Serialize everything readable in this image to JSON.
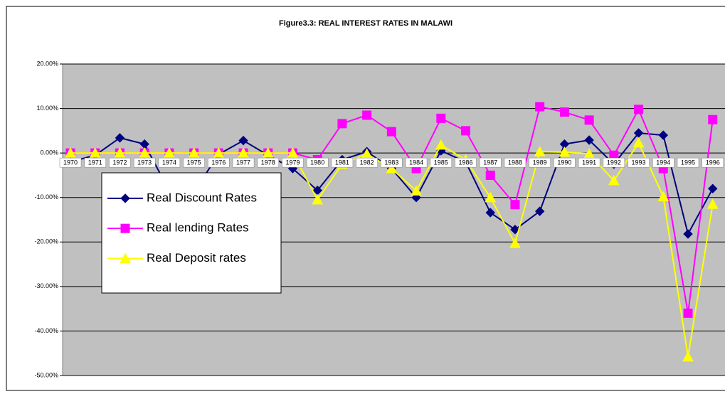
{
  "chart_data": {
    "type": "line",
    "title": "Figure3.3: REAL INTEREST RATES IN MALAWI",
    "categories": [
      "1970",
      "1971",
      "1972",
      "1973",
      "1974",
      "1975",
      "1976",
      "1977",
      "1978",
      "1979",
      "1980",
      "1981",
      "1982",
      "1983",
      "1984",
      "1985",
      "1986",
      "1987",
      "1988",
      "1989",
      "1990",
      "1991",
      "1992",
      "1993",
      "1994",
      "1995",
      "1996"
    ],
    "series": [
      {
        "name": "Real Discount Rates",
        "color": "#000080",
        "marker": "diamond",
        "values": [
          -2,
          -0.5,
          3.4,
          2.0,
          -8.5,
          -8.7,
          -0.3,
          2.8,
          -0.5,
          -3.5,
          -8.4,
          -1.5,
          0.3,
          -3.5,
          -10,
          0.5,
          -2,
          -13.4,
          -17.2,
          -13.1,
          2.0,
          2.9,
          -2.5,
          4.5,
          4.0,
          -18.2,
          -8
        ]
      },
      {
        "name": "Real lending Rates",
        "color": "#ff00ff",
        "marker": "square",
        "values": [
          0,
          0,
          0,
          0,
          0,
          0,
          0,
          0,
          0,
          0,
          -1.5,
          6.6,
          8.5,
          4.8,
          -3.5,
          7.8,
          5.0,
          -5,
          -11.6,
          10.4,
          9.2,
          7.4,
          -0.5,
          9.8,
          -3.5,
          -36,
          7.5
        ]
      },
      {
        "name": "Real Deposit rates",
        "color": "#ffff00",
        "marker": "triangle",
        "values": [
          0,
          0,
          0,
          0,
          0,
          0,
          0,
          0,
          0,
          0,
          -10.5,
          -2.5,
          -0.2,
          -3.5,
          -8.5,
          1.8,
          -1.5,
          -10,
          -20.3,
          0.3,
          0.2,
          -0.2,
          -6.2,
          2.3,
          -9.8,
          -45.8,
          -11.5
        ]
      }
    ],
    "ylim": [
      -50,
      20
    ],
    "yticks": [
      {
        "value": -50,
        "label": "-50.00%"
      },
      {
        "value": -40,
        "label": "-40.00%"
      },
      {
        "value": -30,
        "label": "-30.00%"
      },
      {
        "value": -20,
        "label": "-20.00%"
      },
      {
        "value": -10,
        "label": "-10.00%"
      },
      {
        "value": 0,
        "label": "0.00%"
      },
      {
        "value": 10,
        "label": "10.00%"
      },
      {
        "value": 20,
        "label": "20.00%"
      }
    ],
    "grid": true,
    "plot_background": "#c0c0c0",
    "legend": "lower left"
  }
}
